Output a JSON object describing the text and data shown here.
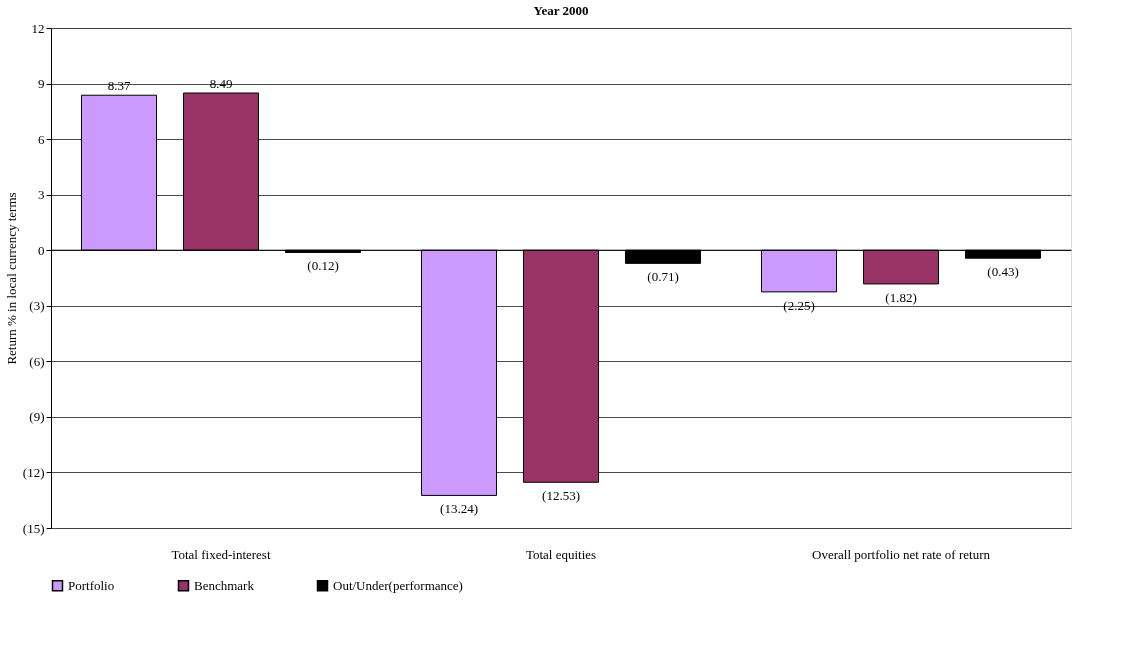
{
  "chart_data": {
    "type": "bar",
    "title": "Year 2000",
    "ylabel": "Return % in local currency terms",
    "categories": [
      "Total fixed-interest",
      "Total equities",
      "Overall portfolio net rate of return"
    ],
    "series": [
      {
        "name": "Portfolio",
        "color": "#cc99ff",
        "values": [
          8.37,
          -13.24,
          -2.25
        ],
        "value_labels": [
          "8.37",
          "(13.24)",
          "(2.25)"
        ]
      },
      {
        "name": "Benchmark",
        "color": "#993366",
        "values": [
          8.49,
          -12.53,
          -1.82
        ],
        "value_labels": [
          "8.49",
          "(12.53)",
          "(1.82)"
        ]
      },
      {
        "name": "Out/Under(performance)",
        "color": "#000000",
        "values": [
          -0.12,
          -0.71,
          -0.43
        ],
        "value_labels": [
          "(0.12)",
          "(0.71)",
          "(0.43)"
        ]
      }
    ],
    "ylim": [
      -15,
      12
    ],
    "yticks": [
      12,
      9,
      6,
      3,
      0,
      {
        "value": -3,
        "label": "(3)"
      },
      {
        "value": -6,
        "label": "(6)"
      },
      {
        "value": -9,
        "label": "(9)"
      },
      {
        "value": -12,
        "label": "(12)"
      },
      {
        "value": -15,
        "label": "(15)"
      }
    ],
    "grid": "y",
    "legend": "bottom"
  }
}
